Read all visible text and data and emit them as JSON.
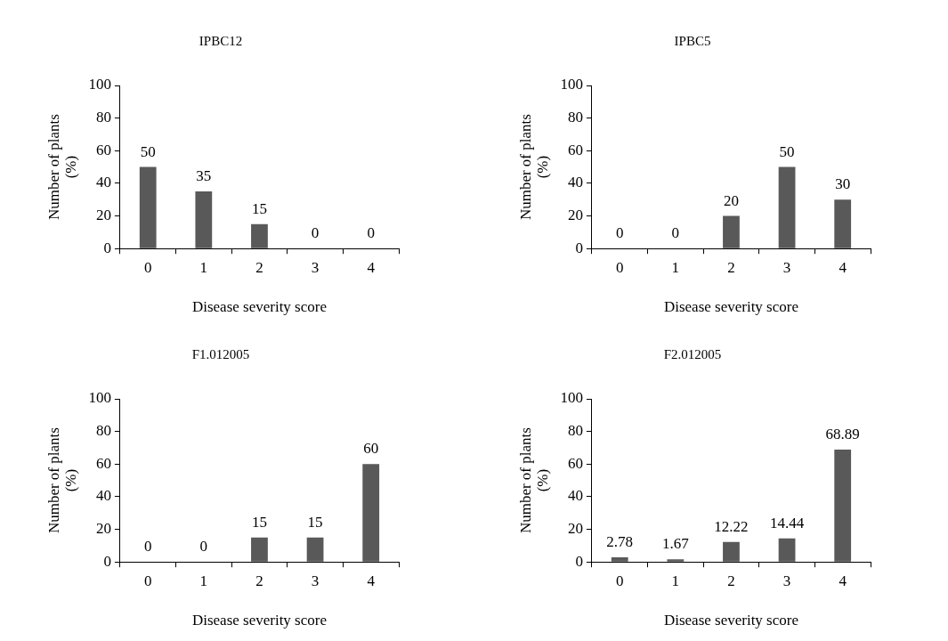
{
  "chart_data": [
    {
      "type": "bar",
      "title": "IPBC12",
      "categories": [
        "0",
        "1",
        "2",
        "3",
        "4"
      ],
      "values": [
        50,
        35,
        15,
        0,
        0
      ],
      "color": "#595959",
      "ylim": [
        0,
        100
      ],
      "yticks": [
        0,
        20,
        40,
        60,
        80,
        100
      ],
      "xlabel": "Disease severity score",
      "ylabel": "Number of plants (%)",
      "data_labels": true,
      "grid": false,
      "legend": false
    },
    {
      "type": "bar",
      "title": "IPBC5",
      "categories": [
        "0",
        "1",
        "2",
        "3",
        "4"
      ],
      "values": [
        0,
        0,
        20,
        50,
        30
      ],
      "color": "#595959",
      "ylim": [
        0,
        100
      ],
      "yticks": [
        0,
        20,
        40,
        60,
        80,
        100
      ],
      "xlabel": "Disease severity score",
      "ylabel": "Number of plants (%)",
      "data_labels": true,
      "grid": false,
      "legend": false
    },
    {
      "type": "bar",
      "title": "F1.012005",
      "categories": [
        "0",
        "1",
        "2",
        "3",
        "4"
      ],
      "values": [
        0,
        0,
        15,
        15,
        60
      ],
      "color": "#595959",
      "ylim": [
        0,
        100
      ],
      "yticks": [
        0,
        20,
        40,
        60,
        80,
        100
      ],
      "xlabel": "Disease severity score",
      "ylabel": "Number of plants (%)",
      "data_labels": true,
      "grid": false,
      "legend": false
    },
    {
      "type": "bar",
      "title": "F2.012005",
      "categories": [
        "0",
        "1",
        "2",
        "3",
        "4"
      ],
      "values": [
        2.78,
        1.67,
        12.22,
        14.44,
        68.89
      ],
      "color": "#595959",
      "ylim": [
        0,
        100
      ],
      "yticks": [
        0,
        20,
        40,
        60,
        80,
        100
      ],
      "xlabel": "Disease severity score",
      "ylabel": "Number of plants (%)",
      "data_labels": true,
      "grid": false,
      "legend": false
    }
  ]
}
